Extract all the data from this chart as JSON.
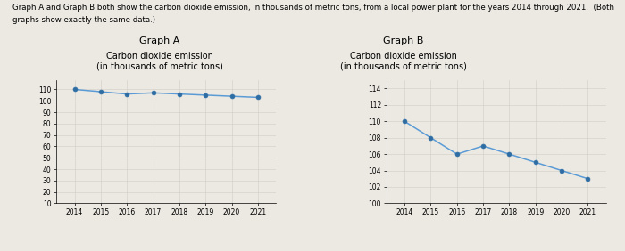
{
  "years": [
    2014,
    2015,
    2016,
    2017,
    2018,
    2019,
    2020,
    2021
  ],
  "values": [
    110,
    108,
    106,
    107,
    106,
    105,
    104,
    103
  ],
  "graph_a_ylim": [
    10,
    118
  ],
  "graph_a_yticks": [
    10,
    20,
    30,
    40,
    50,
    60,
    70,
    80,
    90,
    100,
    110
  ],
  "graph_b_ylim": [
    100,
    115
  ],
  "graph_b_yticks": [
    100,
    102,
    104,
    106,
    108,
    110,
    112,
    114
  ],
  "title_a": "Graph A",
  "title_b": "Graph B",
  "ylabel_line1": "Carbon dioxide emission",
  "ylabel_line2": "(in thousands of metric tons)",
  "line_color": "#5b9bd5",
  "marker_color": "#2e6da4",
  "header_text1": "Graph A and Graph B both show the carbon dioxide emission, in thousands of metric tons, from a local power plant for the years 2014 through 2021.  (Both",
  "header_text2": "graphs show exactly the same data.)",
  "background_color": "#ece9e3",
  "plot_bg_color": "#ece9e3",
  "grid_color": "#d0cdc8"
}
